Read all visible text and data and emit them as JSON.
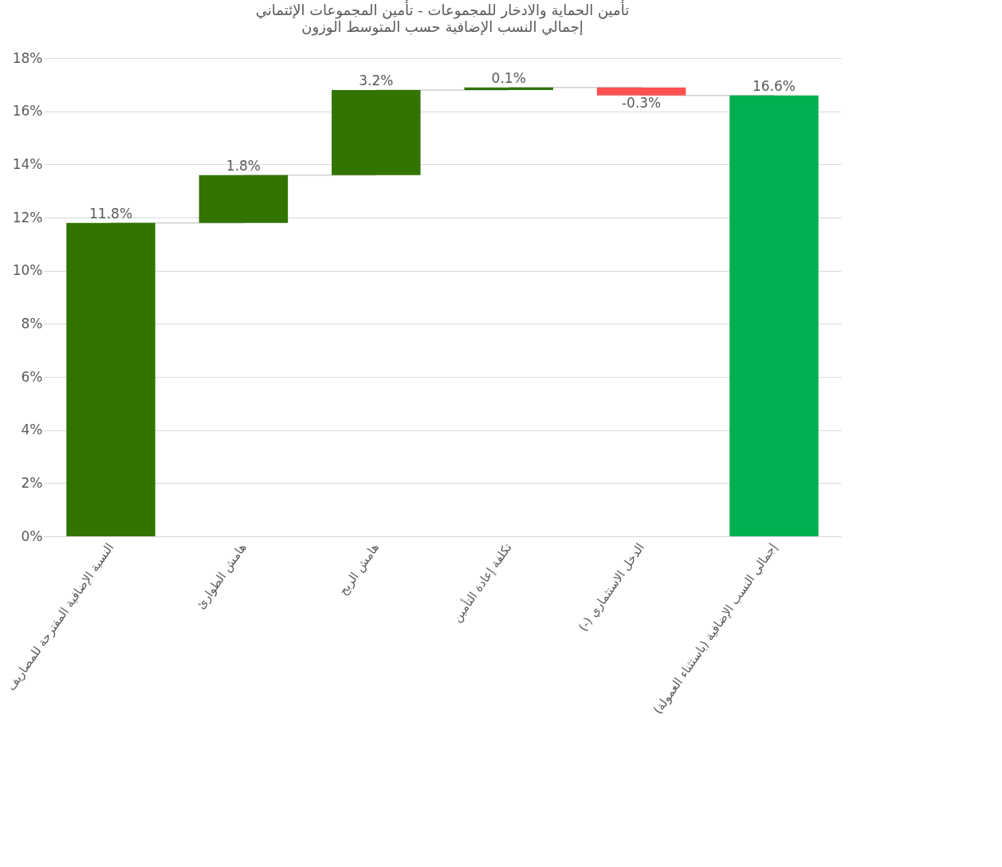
{
  "chart_data": {
    "type": "bar",
    "title": "تأمين الحماية والادخار للمجموعات - تأمين المجموعات الإئتماني",
    "subtitle": "إجمالي النسب الإضافية حسب المتوسط الوزون",
    "categories": [
      "النسبة الإضافية المقترحة للمصاريف",
      "هامش الطوارئ",
      "هامش الربح",
      "تكلفة إعادة التأمين",
      "(-) الدخل الاستثماري",
      "إجمالي النسب الإضافية (باستثناء العمولة)"
    ],
    "values": [
      11.8,
      1.8,
      3.2,
      0.1,
      -0.3,
      16.6
    ],
    "base": [
      0,
      11.8,
      13.6,
      16.8,
      16.9,
      0
    ],
    "colors": [
      "#317400",
      "#317400",
      "#317400",
      "#317400",
      "#ff5050",
      "#00b050"
    ],
    "value_labels": [
      "11.8%",
      "1.8%",
      "3.2%",
      "0.1%",
      "-0.3%",
      "16.6%"
    ],
    "ylim": [
      0,
      18
    ],
    "yticks": [
      {
        "value": 0,
        "label": "0%"
      },
      {
        "value": 2,
        "label": "2%"
      },
      {
        "value": 4,
        "label": "4%"
      },
      {
        "value": 6,
        "label": "6%"
      },
      {
        "value": 8,
        "label": "8%"
      },
      {
        "value": 10,
        "label": "10%"
      },
      {
        "value": 12,
        "label": "12%"
      },
      {
        "value": 14,
        "label": "14%"
      },
      {
        "value": 16,
        "label": "16%"
      },
      {
        "value": 18,
        "label": "18%"
      }
    ],
    "grid": "y"
  }
}
